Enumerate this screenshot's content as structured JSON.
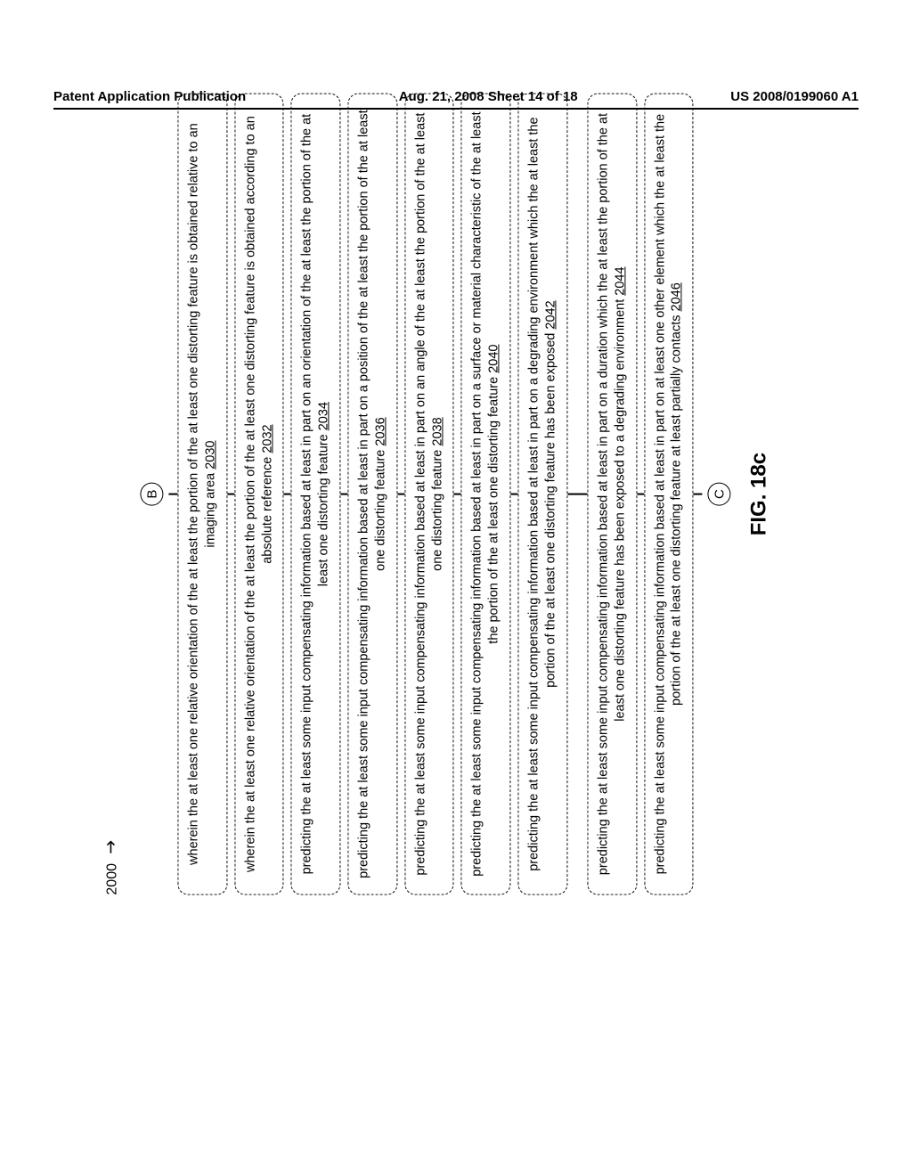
{
  "header": {
    "left": "Patent Application Publication",
    "center": "Aug. 21, 2008  Sheet 14 of 18",
    "right": "US 2008/0199060 A1"
  },
  "figure": {
    "number_label": "2000",
    "connector_top": "B",
    "connector_bottom": "C",
    "caption": "FIG. 18c",
    "boxes": [
      {
        "text": "wherein the at least one relative orientation of the at least the portion of the at least one distorting feature is obtained relative to an imaging area",
        "ref": "2030"
      },
      {
        "text": "wherein the at least one relative orientation of the at least the portion of the at least one distorting feature is obtained according to an absolute reference",
        "ref": "2032"
      },
      {
        "text": "predicting the at least some input compensating information based at least in part on an orientation of the at least the portion of the at least one distorting feature",
        "ref": "2034"
      },
      {
        "text": "predicting the at least some input compensating information based at least in part on a position of the at least the portion of the at least one distorting feature",
        "ref": "2036"
      },
      {
        "text": "predicting the at least some input compensating information based at least in part on an angle of the at least the portion of the at least one distorting feature",
        "ref": "2038"
      },
      {
        "text": "predicting the at least some input compensating information based at least in part on a surface or material characteristic of the at least the portion of the at least one distorting feature",
        "ref": "2040"
      },
      {
        "text": "predicting the at least some input compensating information based at least in part on a degrading environment which the at least the portion of the at least one distorting feature has been exposed",
        "ref": "2042"
      },
      {
        "text": "predicting the at least some input compensating information based at least in part on a duration which the at least the portion of the at least one distorting feature has been exposed to a degrading environment",
        "ref": "2044"
      },
      {
        "text": "predicting the at least some input compensating information based at least in part on at least one other element which the at least the portion of the at least one distorting feature at least partially contacts",
        "ref": "2046"
      }
    ]
  }
}
